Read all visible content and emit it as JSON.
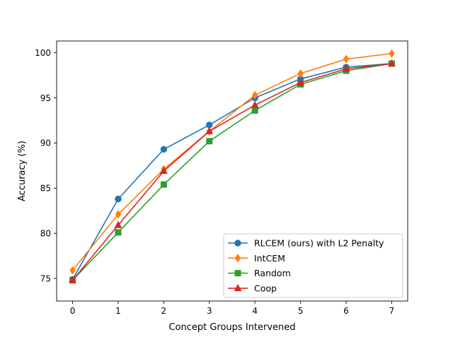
{
  "chart_data": {
    "type": "line",
    "title": "",
    "xlabel": "Concept Groups Intervened",
    "ylabel": "Accuracy (%)",
    "x": [
      0,
      1,
      2,
      3,
      4,
      5,
      6,
      7
    ],
    "xlim": [
      -0.35,
      7.35
    ],
    "ylim": [
      72.5,
      101.3
    ],
    "xticks": [
      0,
      1,
      2,
      3,
      4,
      5,
      6,
      7
    ],
    "yticks": [
      75,
      80,
      85,
      90,
      95,
      100
    ],
    "grid": false,
    "legend_position": "lower-right",
    "series": [
      {
        "name": "RLCEM (ours) with L2 Penalty",
        "color": "#1f77b4",
        "marker": "circle",
        "values": [
          74.9,
          83.8,
          89.3,
          92.0,
          95.0,
          97.1,
          98.4,
          98.8
        ]
      },
      {
        "name": "IntCEM",
        "color": "#ff7f0e",
        "marker": "diamond",
        "values": [
          75.9,
          82.1,
          87.1,
          91.3,
          95.3,
          97.7,
          99.3,
          99.9
        ]
      },
      {
        "name": "Random",
        "color": "#2ca02c",
        "marker": "square",
        "values": [
          74.8,
          80.1,
          85.4,
          90.2,
          93.6,
          96.5,
          98.0,
          98.8
        ]
      },
      {
        "name": "Coop",
        "color": "#d62728",
        "marker": "triangle",
        "values": [
          74.8,
          80.9,
          86.9,
          91.3,
          94.2,
          96.7,
          98.2,
          98.8
        ]
      }
    ]
  }
}
